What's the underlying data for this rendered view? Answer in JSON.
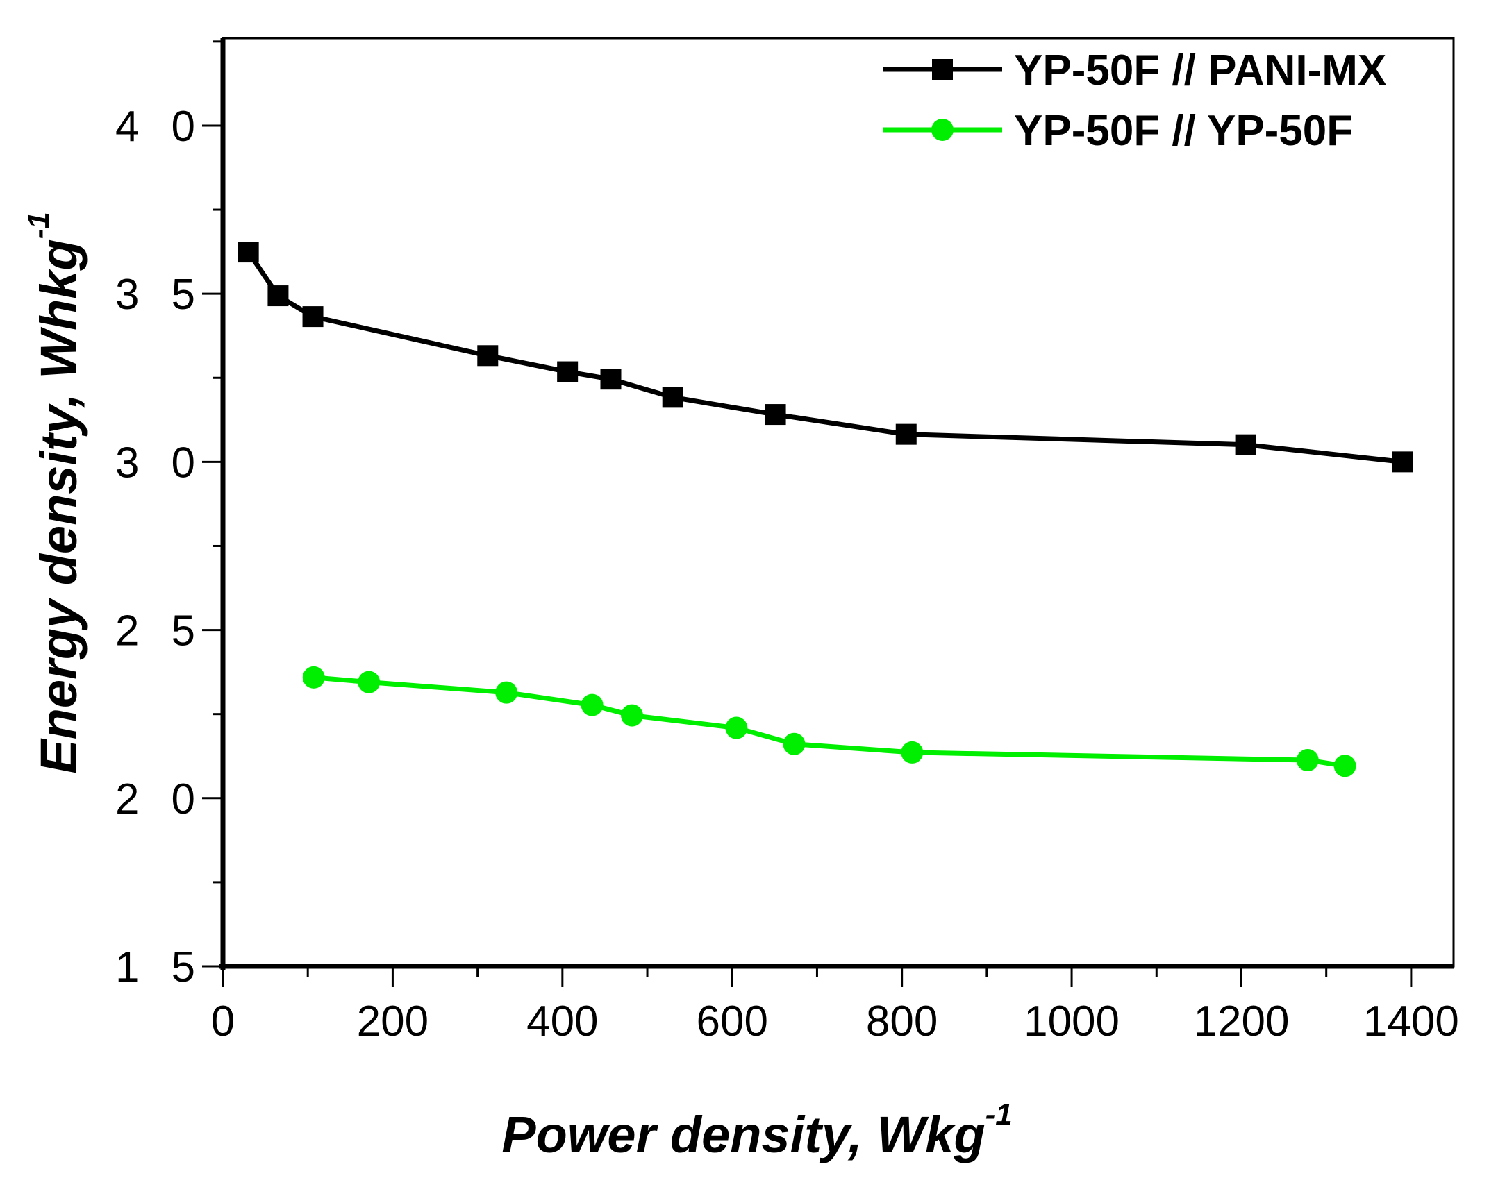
{
  "chart_data": {
    "type": "line",
    "title": "",
    "xlabel": "Power density, Wkg",
    "xlabel_superscript": "-1",
    "ylabel": "Energy density, Whkg",
    "ylabel_superscript": "-1",
    "xlim": [
      0,
      1450
    ],
    "ylim": [
      15,
      42.6
    ],
    "xticks": [
      0,
      200,
      400,
      600,
      800,
      1000,
      1200,
      1400
    ],
    "xtick_labels": [
      "0",
      "200",
      "400",
      "600",
      "800",
      "1000",
      "1200",
      "1400"
    ],
    "yticks": [
      15,
      20,
      25,
      30,
      35,
      40
    ],
    "ytick_labels": [
      "15",
      "20",
      "25",
      "30",
      "35",
      "40"
    ],
    "grid": false,
    "legend_position": "top-right",
    "series": [
      {
        "name": "YP-50F // PANI-MX",
        "color": "#000000",
        "marker": "square",
        "x": [
          30,
          65,
          106,
          312,
          406,
          457,
          530,
          651,
          805,
          1205,
          1390
        ],
        "y": [
          36.24,
          34.94,
          34.32,
          33.16,
          32.68,
          32.46,
          31.92,
          31.41,
          30.82,
          30.51,
          30.0
        ]
      },
      {
        "name": "YP-50F // YP-50F",
        "color": "#00ee00",
        "marker": "circle",
        "x": [
          107,
          172,
          334,
          435,
          482,
          605,
          673,
          812,
          1278,
          1322
        ],
        "y": [
          23.59,
          23.45,
          23.14,
          22.77,
          22.46,
          22.09,
          21.61,
          21.36,
          21.13,
          20.96
        ]
      }
    ]
  }
}
